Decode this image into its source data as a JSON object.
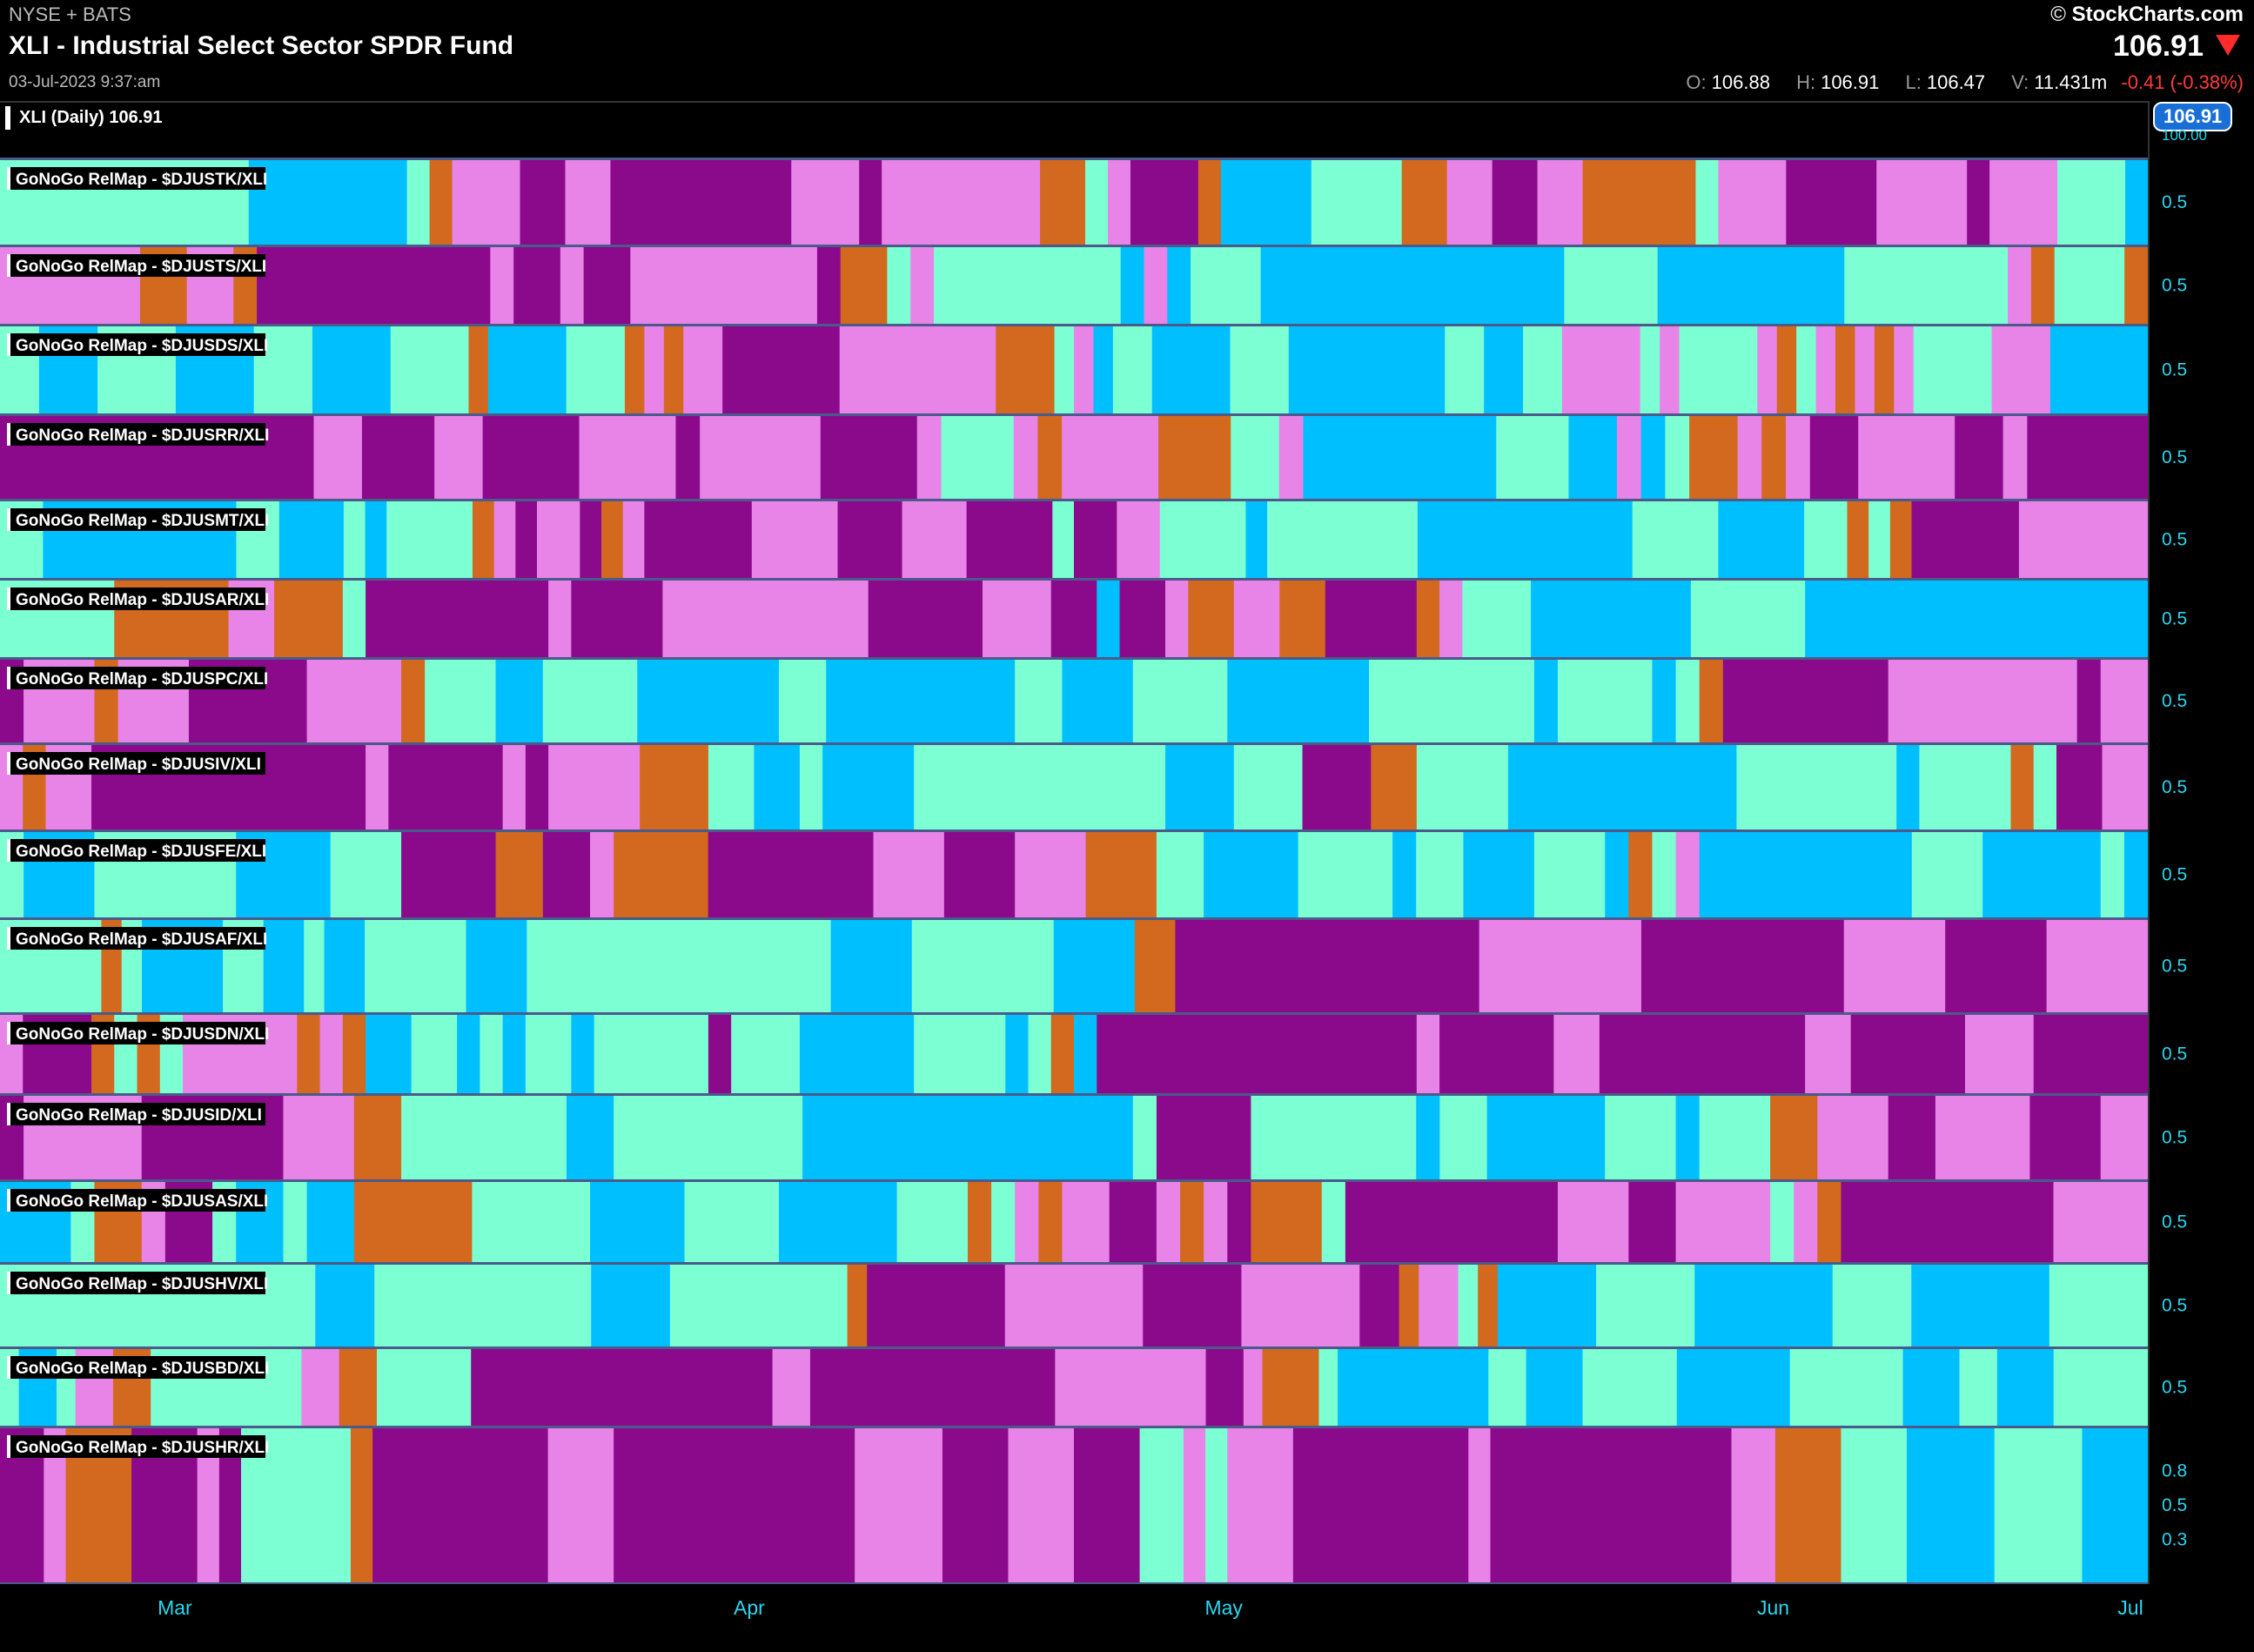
{
  "header": {
    "exchange": "NYSE + BATS",
    "title": "XLI - Industrial Select Sector SPDR Fund",
    "date": "03-Jul-2023 9:37:am",
    "brand": "StockCharts.com",
    "price": "106.91",
    "open_label": "O:",
    "open": "106.88",
    "high_label": "H:",
    "high": "106.91",
    "low_label": "L:",
    "low": "106.47",
    "vol_label": "V:",
    "volume": "11.431m",
    "change": "-0.41 (-0.38%)"
  },
  "price_panel": {
    "label": "XLI (Daily) 106.91",
    "tag": "106.91",
    "axis_top": "100.00"
  },
  "chart_data": {
    "type": "heatmap",
    "title": "GoNoGo RelMap",
    "colors": {
      "M": "#e884e8",
      "P": "#8b0a8b",
      "O": "#d2691e",
      "A": "#7dffd4",
      "B": "#00bfff"
    },
    "legend_codes": {
      "M": "magenta",
      "P": "purple",
      "O": "orange",
      "A": "aqua",
      "B": "blue"
    },
    "period_days": 86,
    "x_months": [
      "Mar",
      "Apr",
      "May",
      "Jun",
      "Jul"
    ],
    "x_month_day": [
      7,
      30,
      49,
      71,
      92
    ],
    "rows": [
      {
        "label": "GoNoGo RelMap - $DJUSTK/XLI",
        "tick": "0.5",
        "seq": "AAAAAAAAAAABBBBBBBAOMMMPPMMPPPPPPPPMMMPMMMMMMMOOAMPPPOBBBBAAAAOOMMPPMMOOOOOAMMMPPPPMMMMPMMMAAAB"
      },
      {
        "label": "GoNoGo RelMap - $DJUSTS/XLI",
        "tick": "0.5",
        "seq": "MMMMMMOOMMOPPPPPPPPPPMPPMPPMMMMMMMMPOOAMAAAAAAAABMBAAABBBBBBBBBBBBBAAAABBBBBBBBAAAAAAAMOAAAO"
      },
      {
        "label": "GoNoGo RelMap - $DJUSDS/XLI",
        "tick": "0.5",
        "seq": "AABBBAAAABBBBAAABBBBAAAAOBBBBAAAOMOMMPPPPPPMMMMMMMMOOOAMBAABBBBAAABBBBBBBBAABBAAMMMMAMAAAAMOAMOMOMAAAAMMMBBBBB"
      },
      {
        "label": "GoNoGo RelMap - $DJUSRR/XLI",
        "tick": "0.5",
        "seq": "PPPPPPPPPPPPPMMPPPMMPPPPMMMMPMMMMMPPPPMAAAMOMMMMOOOAAMBBBBBBBBAAABBMBAOOMOMPPMMMMPPMPPPPP"
      },
      {
        "label": "GoNoGo RelMap - $DJUSMT/XLI",
        "tick": "0.5",
        "seq": "AABBBBBBBBBAABBBABAAAAOMPMMPOMPPPPPMMMMPPPMMMPPPPAPPMMAAAABAAAAAAABBBBBBBBBBAAAABBBBAAOAOPPPPPMMMMMM"
      },
      {
        "label": "GoNoGo RelMap - $DJUSAR/XLI",
        "tick": "0.5",
        "seq": "AAAAAOOOOOMMOOOAPPPPPPPPMPPPPMMMMMMMMMPPPPPMMMPPBPPMOOMMOOPPPPOMAAABBBBBBBAAAAABBBBBBBBBBBBBBB"
      },
      {
        "label": "GoNoGo RelMap - $DJUSPC/XLI",
        "tick": "0.5",
        "seq": "PMMMOMMMPPPPPMMMMOAAABBAAAABBBBBBAABBBBBBBBAABBBAAAABBBBBBAAAAAAABAAAABAOPPPPPPPMMMMMMMMPMM"
      },
      {
        "label": "GoNoGo RelMap - $DJUSIV/XLI",
        "tick": "0.5",
        "seq": "MOMMPPPPPPPPPPPPMPPPPPMPMMMMOOOAABBABBBBAAAAAAAAAAABBBAAAPPPOOAAAABBBBBBBBBBAAAAAAABAAAAOAPPMM"
      },
      {
        "label": "GoNoGo RelMap - $DJUSFE/XLI",
        "tick": "0.5",
        "seq": "ABBBAAAAAABBBBAAAPPPPOOPPMOOOOPPPPPPPMMMPPPMMMOOOAABBBBAAAABAABBBAAABOAMBBBBBBBBBAAABBBBBAB"
      },
      {
        "label": "GoNoGo RelMap - $DJUSAF/XLI",
        "tick": "0.5",
        "seq": "AAAAAOABBBBAABBABBAAAAABBBAAAAAAAAAAAAAAABBBBAAAAAAABBBBOOPPPPPPPPPPPPPPPMMMMMMMMPPPPPPPPPPMMMMMPPPPPMMMMM"
      },
      {
        "label": "GoNoGo RelMap - $DJUSDN/XLI",
        "tick": "0.5",
        "seq": "MPPPOAOAMMMMMOMOBBAABABAABAAAAAPAAABBBBBAAAABAOBPPPPPPPPPPPPPPMPPPPPMMPPPPPPPPPMMPPPPPMMMPPPPP"
      },
      {
        "label": "GoNoGo RelMap - $DJUSID/XLI",
        "tick": "0.5",
        "seq": "PMMMMMPPPPPPMMMOOAAAAAAABBAAAAAAAABBBBBBBBBBBBBBAPPPPAAAAAAABAABBBBBAAABAAAOOMMMPPMMMMPPPMM"
      },
      {
        "label": "GoNoGo RelMap - $DJUSAS/XLI",
        "tick": "0.5",
        "seq": "BBBAOOMPPABBABBOOOOOAAAAABBBBAAAABBBBBAAAOAMOMMPPMOMPOOOAPPPPPPPPPMMMPPMMMMAMOPPPPPPPPPMMMM"
      },
      {
        "label": "GoNoGo RelMap - $DJUSHV/XLI",
        "tick": "0.5",
        "seq": "AAAAAAAAAAAAAAAABBBAAAAAAAAAAABBBBAAAAAAAAAOPPPPPPPMMMMMMMPPPPPMMMMMMPPOMMAOBBBBBAAAAABBBBBBBAAAABBBBBBBAAAAA"
      },
      {
        "label": "GoNoGo RelMap - $DJUSBD/XLI",
        "tick": "0.5",
        "seq": "ABBAMMOOAAAAAAAAMMOOAAAAAPPPPPPPPPPPPPPPPMMPPPPPPPPPPPPPMMMMMMMMPPMOOOABBBBBBBBAABBBAAAAABBBBBBAAAAAABBBAABBBAAAAA"
      },
      {
        "label": "GoNoGo RelMap - $DJUSHR/XLI",
        "tick": "0.5",
        "seq": "PPMOOOPPPMPAAAAAOPPPPPPPPMMMPPPPPPPPPPPMMMMPPPMMMPPPAAMAMMMPPPPPPPPMPPPPPPPPPPPMMOOOAAABBBBAAAABBB",
        "ticks": [
          "0.8",
          "0.5",
          "0.3"
        ]
      }
    ]
  }
}
